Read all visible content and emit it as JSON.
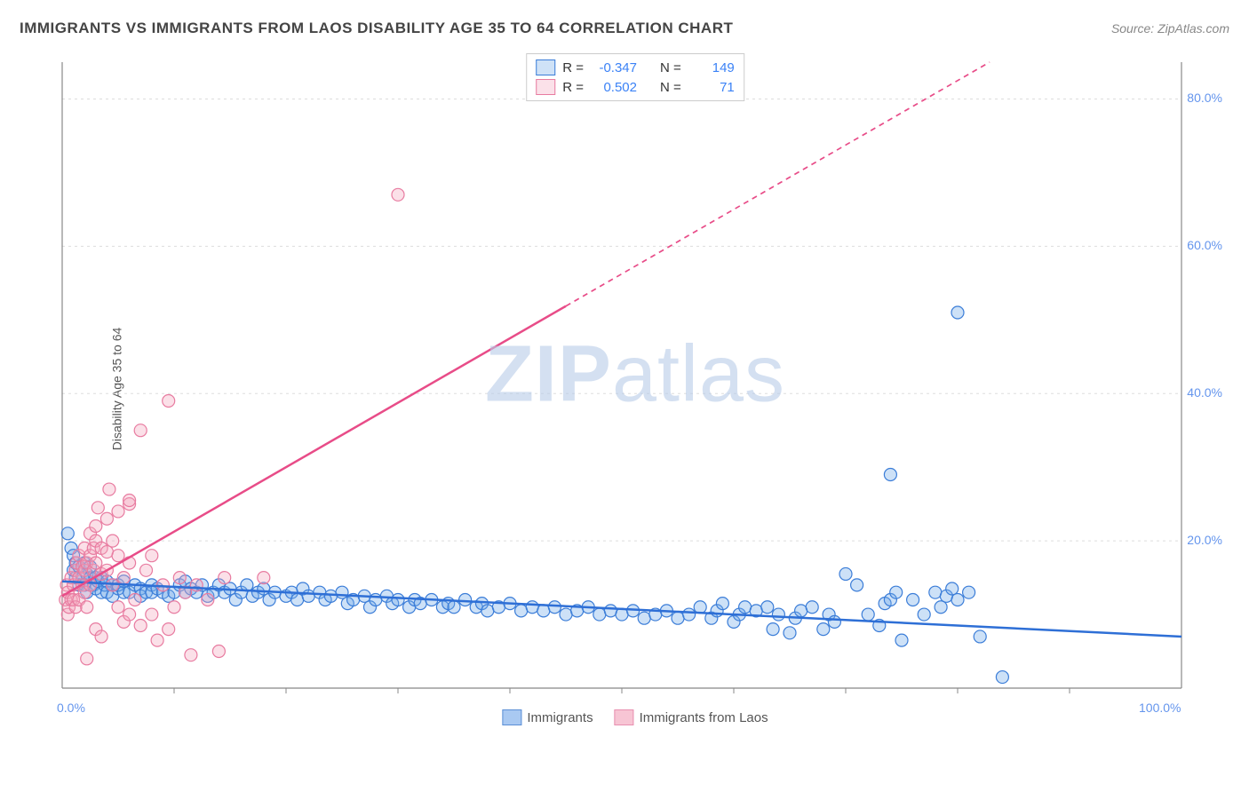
{
  "title": "IMMIGRANTS VS IMMIGRANTS FROM LAOS DISABILITY AGE 35 TO 64 CORRELATION CHART",
  "source_label": "Source:",
  "source_value": "ZipAtlas.com",
  "y_axis_label": "Disability Age 35 to 64",
  "watermark_bold": "ZIP",
  "watermark_rest": "atlas",
  "chart": {
    "type": "scatter",
    "background_color": "#ffffff",
    "grid_color": "#dddddd",
    "axis_color": "#888888",
    "tick_label_color": "#6495ed",
    "xlim": [
      0,
      100
    ],
    "ylim": [
      0,
      85
    ],
    "x_ticks": [
      0,
      100
    ],
    "x_tick_labels": [
      "0.0%",
      "100.0%"
    ],
    "x_minor_ticks": [
      10,
      20,
      30,
      40,
      50,
      60,
      70,
      80,
      90
    ],
    "y_ticks": [
      20,
      40,
      60,
      80
    ],
    "y_tick_labels": [
      "20.0%",
      "40.0%",
      "60.0%",
      "80.0%"
    ],
    "marker_radius": 7,
    "marker_stroke_width": 1.2,
    "marker_fill_opacity": 0.35,
    "trend_line_width": 2.5,
    "trend_dash": "6,5"
  },
  "series": [
    {
      "name": "Immigrants",
      "color": "#6fa8e8",
      "stroke": "#3b7dd8",
      "trend_color": "#2e6fd6",
      "R": "-0.347",
      "N": "149",
      "trend": {
        "x1": 0,
        "y1": 14.5,
        "x2": 100,
        "y2": 7.0,
        "dash_from_x": null
      },
      "points": [
        [
          0.5,
          21
        ],
        [
          0.8,
          19
        ],
        [
          1,
          18
        ],
        [
          1,
          16
        ],
        [
          1.2,
          17
        ],
        [
          1.2,
          15
        ],
        [
          1.5,
          16.5
        ],
        [
          1.5,
          14
        ],
        [
          1.8,
          15
        ],
        [
          2,
          17
        ],
        [
          2,
          14
        ],
        [
          2.2,
          15.5
        ],
        [
          2.2,
          13
        ],
        [
          2.5,
          15
        ],
        [
          2.5,
          16.5
        ],
        [
          2.8,
          14
        ],
        [
          3,
          15
        ],
        [
          3,
          13.5
        ],
        [
          3.2,
          14.5
        ],
        [
          3.5,
          15
        ],
        [
          3.5,
          13
        ],
        [
          3.8,
          14
        ],
        [
          4,
          14.5
        ],
        [
          4,
          13
        ],
        [
          4.5,
          14
        ],
        [
          4.5,
          12.5
        ],
        [
          5,
          13.5
        ],
        [
          5,
          14
        ],
        [
          5.5,
          13
        ],
        [
          5.5,
          14.5
        ],
        [
          6,
          13
        ],
        [
          6.5,
          14
        ],
        [
          7,
          13.5
        ],
        [
          7,
          12.5
        ],
        [
          7.5,
          13
        ],
        [
          8,
          14
        ],
        [
          8,
          13
        ],
        [
          8.5,
          13.5
        ],
        [
          9,
          13
        ],
        [
          9.5,
          12.5
        ],
        [
          10,
          13
        ],
        [
          10.5,
          14
        ],
        [
          11,
          13
        ],
        [
          11,
          14.5
        ],
        [
          11.5,
          13.5
        ],
        [
          12,
          13
        ],
        [
          12.5,
          14
        ],
        [
          13,
          12.5
        ],
        [
          13.5,
          13
        ],
        [
          14,
          14
        ],
        [
          14.5,
          13
        ],
        [
          15,
          13.5
        ],
        [
          15.5,
          12
        ],
        [
          16,
          13
        ],
        [
          16.5,
          14
        ],
        [
          17,
          12.5
        ],
        [
          17.5,
          13
        ],
        [
          18,
          13.5
        ],
        [
          18.5,
          12
        ],
        [
          19,
          13
        ],
        [
          20,
          12.5
        ],
        [
          20.5,
          13
        ],
        [
          21,
          12
        ],
        [
          21.5,
          13.5
        ],
        [
          22,
          12.5
        ],
        [
          23,
          13
        ],
        [
          23.5,
          12
        ],
        [
          24,
          12.5
        ],
        [
          25,
          13
        ],
        [
          25.5,
          11.5
        ],
        [
          26,
          12
        ],
        [
          27,
          12.5
        ],
        [
          27.5,
          11
        ],
        [
          28,
          12
        ],
        [
          29,
          12.5
        ],
        [
          29.5,
          11.5
        ],
        [
          30,
          12
        ],
        [
          31,
          11
        ],
        [
          31.5,
          12
        ],
        [
          32,
          11.5
        ],
        [
          33,
          12
        ],
        [
          34,
          11
        ],
        [
          34.5,
          11.5
        ],
        [
          35,
          11
        ],
        [
          36,
          12
        ],
        [
          37,
          11
        ],
        [
          37.5,
          11.5
        ],
        [
          38,
          10.5
        ],
        [
          39,
          11
        ],
        [
          40,
          11.5
        ],
        [
          41,
          10.5
        ],
        [
          42,
          11
        ],
        [
          43,
          10.5
        ],
        [
          44,
          11
        ],
        [
          45,
          10
        ],
        [
          46,
          10.5
        ],
        [
          47,
          11
        ],
        [
          48,
          10
        ],
        [
          49,
          10.5
        ],
        [
          50,
          10
        ],
        [
          51,
          10.5
        ],
        [
          52,
          9.5
        ],
        [
          53,
          10
        ],
        [
          54,
          10.5
        ],
        [
          55,
          9.5
        ],
        [
          56,
          10
        ],
        [
          57,
          11
        ],
        [
          58,
          9.5
        ],
        [
          58.5,
          10.5
        ],
        [
          59,
          11.5
        ],
        [
          60,
          9
        ],
        [
          60.5,
          10
        ],
        [
          61,
          11
        ],
        [
          62,
          10.5
        ],
        [
          63,
          11
        ],
        [
          63.5,
          8
        ],
        [
          64,
          10
        ],
        [
          65,
          7.5
        ],
        [
          65.5,
          9.5
        ],
        [
          66,
          10.5
        ],
        [
          67,
          11
        ],
        [
          68,
          8
        ],
        [
          68.5,
          10
        ],
        [
          69,
          9
        ],
        [
          70,
          15.5
        ],
        [
          71,
          14
        ],
        [
          72,
          10
        ],
        [
          73,
          8.5
        ],
        [
          73.5,
          11.5
        ],
        [
          74,
          12
        ],
        [
          74.5,
          13
        ],
        [
          75,
          6.5
        ],
        [
          76,
          12
        ],
        [
          77,
          10
        ],
        [
          78,
          13
        ],
        [
          78.5,
          11
        ],
        [
          79,
          12.5
        ],
        [
          79.5,
          13.5
        ],
        [
          80,
          51
        ],
        [
          80,
          12
        ],
        [
          81,
          13
        ],
        [
          82,
          7
        ],
        [
          84,
          1.5
        ],
        [
          74,
          29
        ]
      ]
    },
    {
      "name": "Immigrants from Laos",
      "color": "#f4a6bd",
      "stroke": "#e87ba0",
      "trend_color": "#e84c88",
      "R": "0.502",
      "N": "71",
      "trend": {
        "x1": 0,
        "y1": 12.5,
        "x2": 100,
        "y2": 100,
        "dash_from_x": 45
      },
      "points": [
        [
          0.3,
          12
        ],
        [
          0.4,
          14
        ],
        [
          0.5,
          10
        ],
        [
          0.5,
          13
        ],
        [
          0.6,
          11
        ],
        [
          0.8,
          12
        ],
        [
          0.8,
          15
        ],
        [
          1,
          12
        ],
        [
          1,
          14
        ],
        [
          1.2,
          11
        ],
        [
          1.2,
          16
        ],
        [
          1.3,
          17
        ],
        [
          1.5,
          12
        ],
        [
          1.5,
          15
        ],
        [
          1.5,
          18
        ],
        [
          1.8,
          14
        ],
        [
          1.8,
          16.5
        ],
        [
          2,
          13
        ],
        [
          2,
          16
        ],
        [
          2,
          19
        ],
        [
          2.2,
          4
        ],
        [
          2.2,
          11
        ],
        [
          2.2,
          17
        ],
        [
          2.5,
          14
        ],
        [
          2.5,
          18
        ],
        [
          2.5,
          21
        ],
        [
          2.8,
          16
        ],
        [
          2.8,
          19
        ],
        [
          3,
          8
        ],
        [
          3,
          17
        ],
        [
          3,
          20
        ],
        [
          3,
          22
        ],
        [
          3.2,
          24.5
        ],
        [
          3.5,
          15.5
        ],
        [
          3.5,
          19
        ],
        [
          3.5,
          7
        ],
        [
          4,
          16
        ],
        [
          4,
          18.5
        ],
        [
          4,
          23
        ],
        [
          4.2,
          27
        ],
        [
          4.5,
          14
        ],
        [
          4.5,
          20
        ],
        [
          5,
          11
        ],
        [
          5,
          18
        ],
        [
          5,
          24
        ],
        [
          5.5,
          9
        ],
        [
          5.5,
          15
        ],
        [
          6,
          10
        ],
        [
          6,
          17
        ],
        [
          6,
          25
        ],
        [
          6.5,
          12
        ],
        [
          7,
          8.5
        ],
        [
          7,
          35
        ],
        [
          7.5,
          16
        ],
        [
          8,
          10
        ],
        [
          8,
          18
        ],
        [
          8.5,
          6.5
        ],
        [
          9,
          14
        ],
        [
          9.5,
          8
        ],
        [
          9.5,
          39
        ],
        [
          10,
          11
        ],
        [
          10.5,
          15
        ],
        [
          11,
          13
        ],
        [
          11.5,
          4.5
        ],
        [
          12,
          14
        ],
        [
          13,
          12
        ],
        [
          14,
          5
        ],
        [
          14.5,
          15
        ],
        [
          18,
          15
        ],
        [
          6,
          25.5
        ],
        [
          30,
          67
        ]
      ]
    }
  ],
  "stats_legend_labels": {
    "R": "R =",
    "N": "N ="
  },
  "x_legend": [
    {
      "label": "Immigrants",
      "fill": "#a9c9f2",
      "stroke": "#5b8fd6"
    },
    {
      "label": "Immigrants from Laos",
      "fill": "#f7c5d4",
      "stroke": "#e890b0"
    }
  ]
}
